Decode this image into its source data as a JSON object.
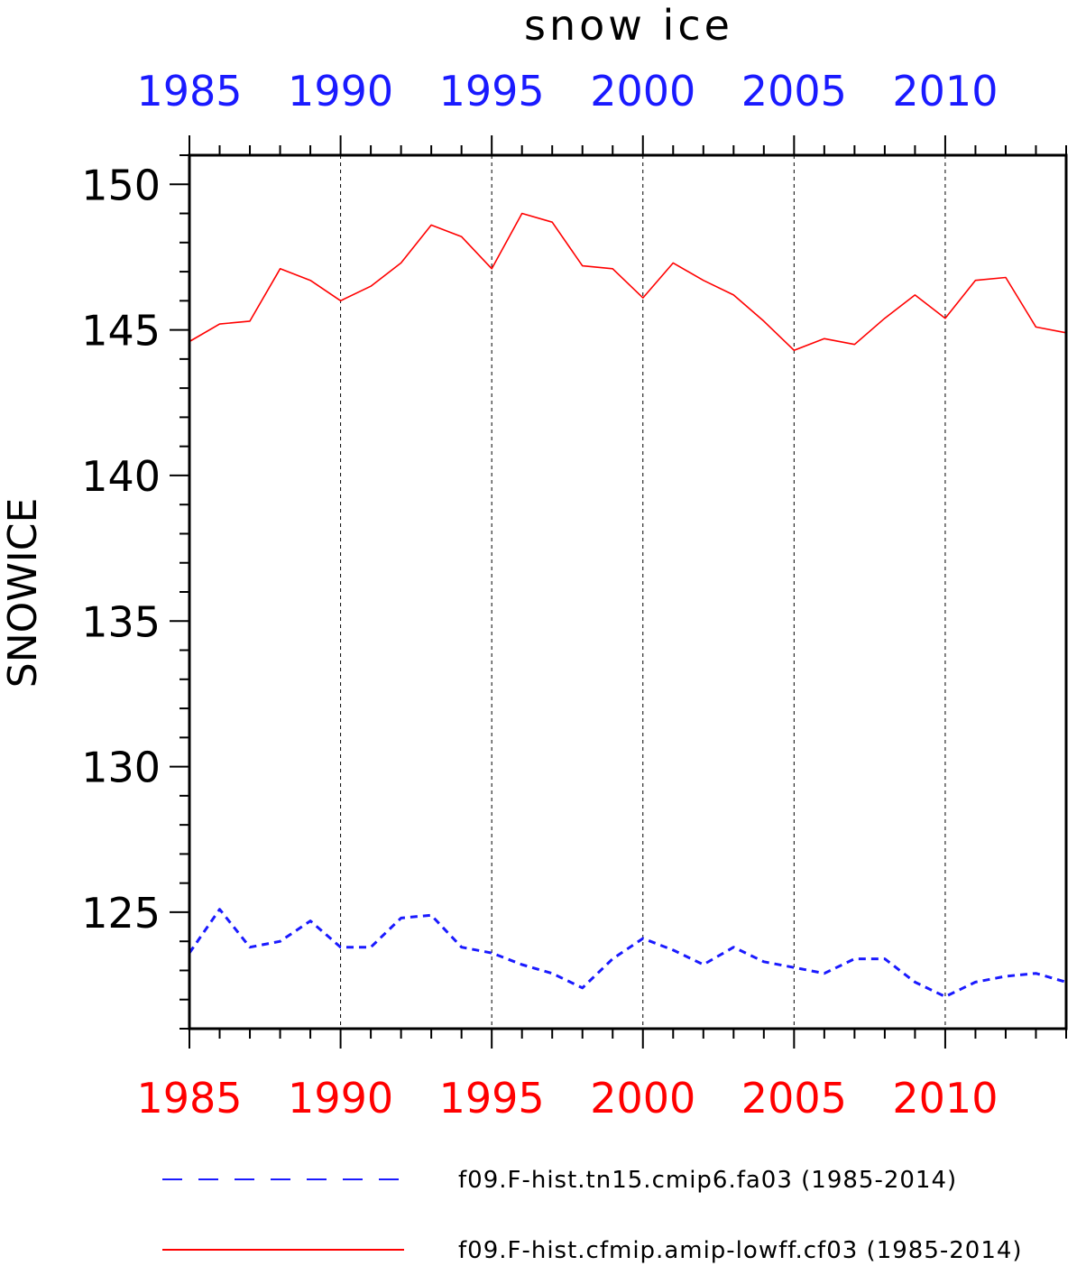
{
  "chart_data": {
    "type": "line",
    "title": "snow ice",
    "ylabel": "SNOWICE",
    "xlim": [
      1985,
      2014
    ],
    "ylim": [
      121,
      151
    ],
    "x_ticks": [
      1985,
      1990,
      1995,
      2000,
      2005,
      2010
    ],
    "x_tick_labels": [
      "1985",
      "1990",
      "1995",
      "2000",
      "2005",
      "2010"
    ],
    "y_ticks": [
      125,
      130,
      135,
      140,
      145,
      150
    ],
    "y_tick_labels": [
      "125",
      "130",
      "135",
      "140",
      "145",
      "150"
    ],
    "top_axis_color": "#1a1aff",
    "bottom_axis_color": "#ff0000",
    "grid": "vertical dashed at major x ticks",
    "legend_position": "bottom",
    "x": [
      1985,
      1986,
      1987,
      1988,
      1989,
      1990,
      1991,
      1992,
      1993,
      1994,
      1995,
      1996,
      1997,
      1998,
      1999,
      2000,
      2001,
      2002,
      2003,
      2004,
      2005,
      2006,
      2007,
      2008,
      2009,
      2010,
      2011,
      2012,
      2013,
      2014
    ],
    "series": [
      {
        "name": "f09.F-hist.tn15.cmip6.fa03 (1985-2014)",
        "color": "#1a1aff",
        "style": "dashed",
        "values": [
          123.6,
          125.1,
          123.8,
          124.0,
          124.7,
          123.8,
          123.8,
          124.8,
          124.9,
          123.8,
          123.6,
          123.2,
          122.9,
          122.4,
          123.4,
          124.1,
          123.7,
          123.2,
          123.8,
          123.3,
          123.1,
          122.9,
          123.4,
          123.4,
          122.6,
          122.1,
          122.6,
          122.8,
          122.9,
          122.6
        ]
      },
      {
        "name": "f09.F-hist.cfmip.amip-lowff.cf03 (1985-2014)",
        "color": "#ff0000",
        "style": "solid",
        "values": [
          144.6,
          145.2,
          145.3,
          147.1,
          146.7,
          146.0,
          146.5,
          147.3,
          148.6,
          148.2,
          147.1,
          149.0,
          148.7,
          147.2,
          147.1,
          146.1,
          147.3,
          146.7,
          146.2,
          145.3,
          144.3,
          144.7,
          144.5,
          145.4,
          146.2,
          145.4,
          146.7,
          146.8,
          145.1,
          144.9
        ]
      }
    ]
  }
}
